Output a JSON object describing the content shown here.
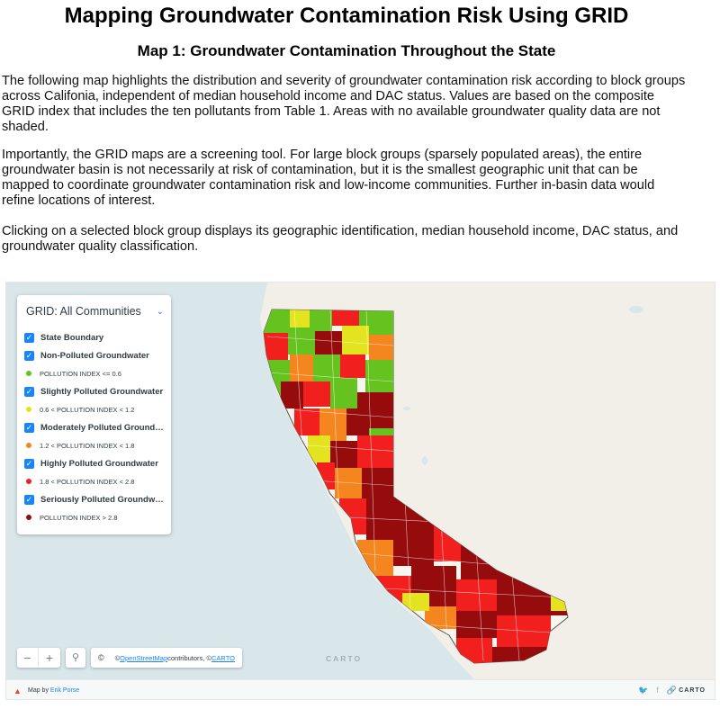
{
  "page": {
    "title": "Mapping Groundwater Contamination Risk Using GRID",
    "subtitle": "Map 1: Groundwater Contamination Throughout the State",
    "paragraphs": [
      "The following map highlights the distribution and severity of groundwater contamination risk according to block groups across Califonia, independent of median household income and DAC status. Values are based on the composite GRID index that includes the ten pollutants from Table 1. Areas with no available groundwater quality data are not shaded.",
      "Importantly, the GRID maps are a screening tool. For large block groups (sparsely populated areas), the entire groundwater basin is not necessarily at risk of contamination, but it is the smallest geographic unit that can be mapped to coordinate groundwater contamination risk and low-income communities. Further in-basin data would refine locations of interest.",
      "Clicking on a selected block group displays its geographic identification, median household income, DAC status, and groundwater quality classification."
    ]
  },
  "legend": {
    "title": "GRID: All Communities",
    "layers": [
      {
        "label": "State Boundary",
        "checked": true
      },
      {
        "label": "Non-Polluted Groundwater",
        "checked": true,
        "swatch": "POLLUTION INDEX <= 0.6",
        "color": "#66c21f"
      },
      {
        "label": "Slightly Polluted Groundwater",
        "checked": true,
        "swatch": "0.6 < POLLUTION INDEX < 1.2",
        "color": "#e3e31f"
      },
      {
        "label": "Moderately Polluted Groundwa...",
        "checked": true,
        "swatch": "1.2 < POLLUTION INDEX < 1.8",
        "color": "#f5861f"
      },
      {
        "label": "Highly Polluted Groundwater",
        "checked": true,
        "swatch": "1.8 < POLLUTION INDEX < 2.8",
        "color": "#f21f1f"
      },
      {
        "label": "Seriously Polluted Groundwater",
        "checked": true,
        "swatch": "POLLUTION INDEX > 2.8",
        "color": "#960c0c"
      }
    ]
  },
  "controls": {
    "zoom_out": "−",
    "zoom_in": "+",
    "search_icon": "search-icon",
    "attribution_prefix": "© ",
    "osm_link": "OpenStreetMap",
    "attribution_mid": " contributors, © ",
    "carto_link": "CARTO"
  },
  "watermark": "CARTO",
  "footer": {
    "map_by": "Map by ",
    "author": "Erik Porse",
    "brand": "CARTO"
  },
  "colors": {
    "accent": "#1785fb",
    "water": "#d9e6ea",
    "land": "#f2efe9"
  }
}
